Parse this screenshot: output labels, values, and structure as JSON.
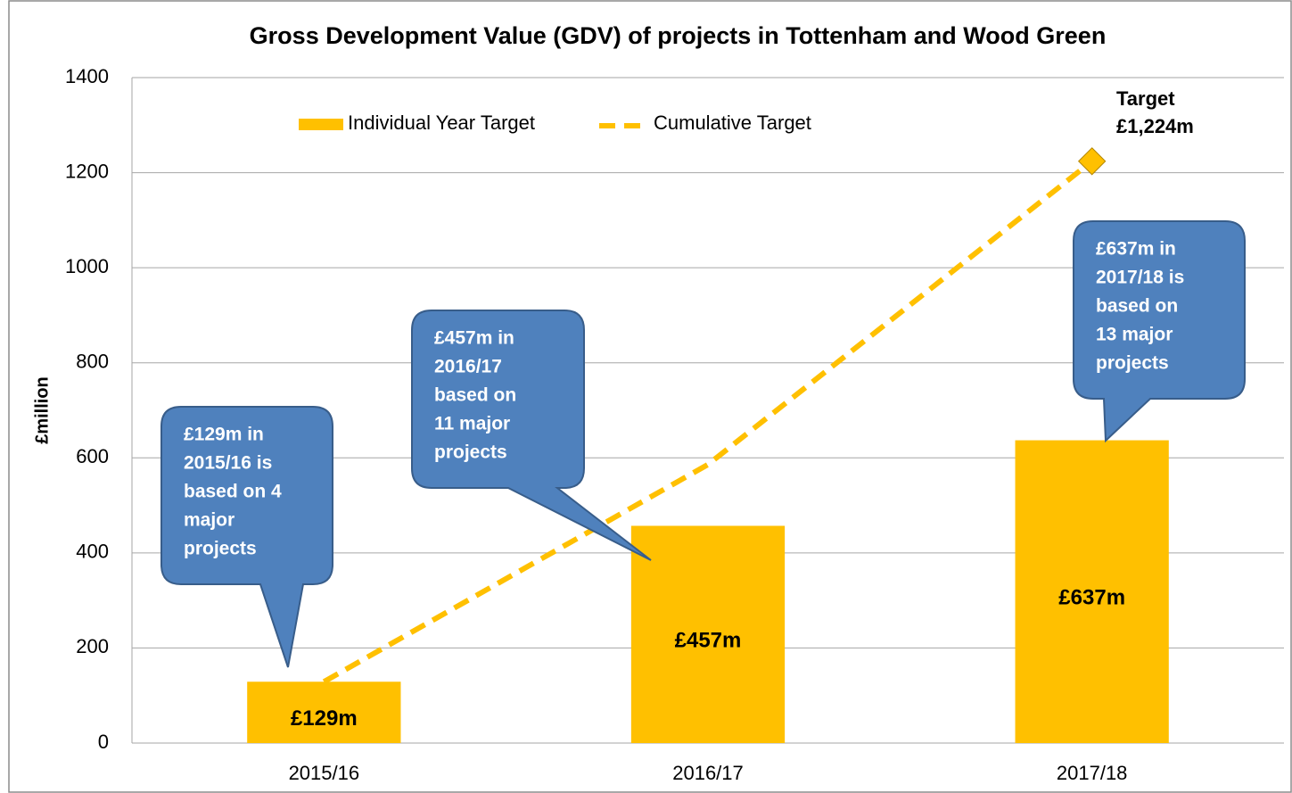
{
  "chart_data": {
    "type": "bar",
    "title": "Gross Development Value (GDV) of projects in Tottenham and Wood Green",
    "y_label": "£million",
    "categories": [
      "2015/16",
      "2016/17",
      "2017/18"
    ],
    "series": [
      {
        "name": "Individual Year Target",
        "type": "bar",
        "color": "#ffc000",
        "values": [
          129,
          457,
          637
        ],
        "value_labels": [
          "£129m",
          "£457m",
          "£637m"
        ]
      },
      {
        "name": "Cumulative Target",
        "type": "line",
        "color": "#ffc000",
        "values": [
          129,
          586,
          1224
        ]
      }
    ],
    "ylim": [
      0,
      1400
    ],
    "yticks": [
      0,
      200,
      400,
      600,
      800,
      1000,
      1200,
      1400
    ],
    "grid": true,
    "legend": "top",
    "target_label": [
      "Target",
      "£1,224m"
    ],
    "callouts": [
      [
        "£129m in",
        "2015/16 is",
        "based on  4",
        "major",
        "projects"
      ],
      [
        "£457m in",
        "2016/17",
        "based on",
        "11 major",
        "projects"
      ],
      [
        "£637m in",
        "2017/18 is",
        "based on",
        "13 major",
        "projects"
      ]
    ]
  }
}
